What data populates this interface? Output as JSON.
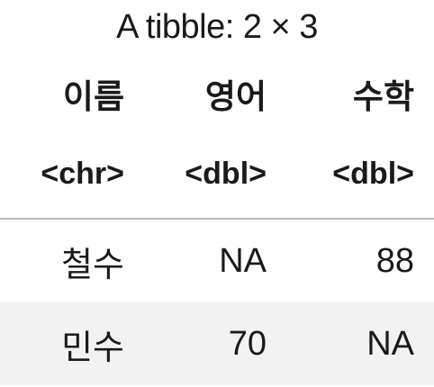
{
  "caption": "A tibble: 2 × 3",
  "columns": [
    {
      "name": "이름",
      "type": "<chr>"
    },
    {
      "name": "영어",
      "type": "<dbl>"
    },
    {
      "name": "수학",
      "type": "<dbl>"
    }
  ],
  "rows": [
    [
      "철수",
      "NA",
      "88"
    ],
    [
      "민수",
      "70",
      "NA"
    ]
  ],
  "colors": {
    "stripe": "#f2f2f2",
    "rule": "#b8b8b8",
    "text": "#1a1a1a"
  }
}
